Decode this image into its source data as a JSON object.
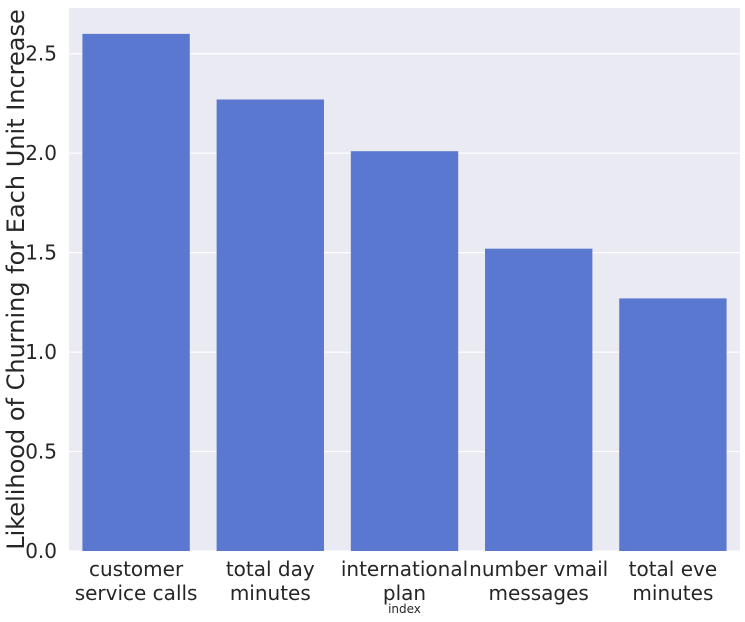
{
  "chart_data": {
    "type": "bar",
    "categories": [
      [
        "customer",
        "service calls"
      ],
      [
        "total day",
        "minutes"
      ],
      [
        "international",
        "plan"
      ],
      [
        "number vmail",
        "messages"
      ],
      [
        "total eve",
        "minutes"
      ]
    ],
    "values": [
      2.6,
      2.27,
      2.01,
      1.52,
      1.27
    ],
    "xlabel": "index",
    "ylabel": "Likelihood of Churning for Each Unit Increase",
    "ylim": [
      0,
      2.73
    ],
    "yticks": [
      0.0,
      0.5,
      1.0,
      1.5,
      2.0,
      2.5
    ],
    "ytick_labels": [
      "0.0",
      "0.5",
      "1.0",
      "1.5",
      "2.0",
      "2.5"
    ],
    "grid": true,
    "colors": {
      "bar": "#5a78cf",
      "background": "#eaeaf2",
      "grid": "#ffffff"
    }
  }
}
